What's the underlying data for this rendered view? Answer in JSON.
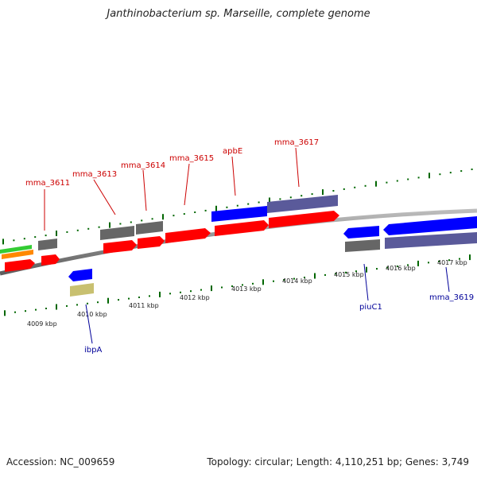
{
  "title": "Janthinobacterium sp. Marseille, complete genome",
  "footer": {
    "accession": "Accession: NC_009659",
    "summary": "Topology: circular; Length: 4,110,251 bp; Genes: 3,749"
  },
  "colors": {
    "forward_cds": "#ff0000",
    "reverse_cds": "#0000ff",
    "forward_gene": "#666666",
    "reverse_gene": "#5a5a9a",
    "rrna": "#c8c070",
    "trna_green": "#33cc33",
    "trna_orange": "#ff8800",
    "forward_label": "#cc0000",
    "reverse_label": "#000099",
    "tick": "#006600",
    "backbone": "#808080"
  },
  "scale_labels": [
    "4009 kbp",
    "4010 kbp",
    "4011 kbp",
    "4012 kbp",
    "4013 kbp",
    "4014 kbp",
    "4015 kbp",
    "4016 kbp",
    "4017 kbp"
  ],
  "gene_labels": {
    "forward": [
      "mma_3611",
      "mma_3613",
      "mma_3614",
      "mma_3615",
      "apbE",
      "mma_3617"
    ],
    "reverse": [
      "ibpA",
      "piuC1",
      "mma_3619"
    ]
  }
}
